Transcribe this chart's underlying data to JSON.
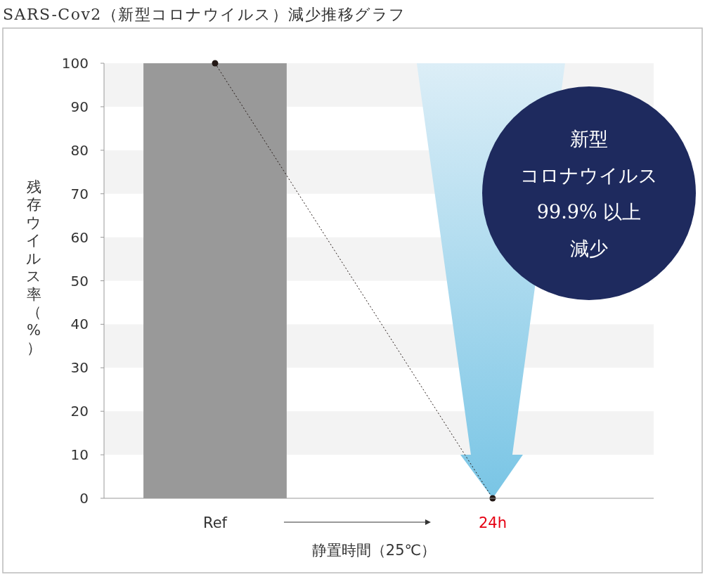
{
  "chart_data": {
    "type": "bar",
    "title": "SARS-Cov2（新型コロナウイルス）減少推移グラフ",
    "xlabel": "静置時間（25℃）",
    "ylabel": "残存ウイルス率（%）",
    "categories": [
      "Ref",
      "24h"
    ],
    "series": [
      {
        "color": "#999999",
        "values": [
          100,
          0
        ]
      },
      {
        "type": "line",
        "color": "#231815",
        "values": [
          100,
          0
        ],
        "marker": "circle",
        "line_style": "dotted"
      }
    ],
    "ylim": [
      0,
      100
    ],
    "yticks": [
      0,
      10,
      20,
      30,
      40,
      50,
      60,
      70,
      80,
      90,
      100
    ],
    "bands": [
      {
        "axis": "y",
        "from": 10,
        "to": 20,
        "color": "#f3f3f3"
      },
      {
        "axis": "y",
        "from": 30,
        "to": 40,
        "color": "#f3f3f3"
      },
      {
        "axis": "y",
        "from": 50,
        "to": 60,
        "color": "#f3f3f3"
      },
      {
        "axis": "y",
        "from": 70,
        "to": 80,
        "color": "#f3f3f3"
      },
      {
        "axis": "y",
        "from": 90,
        "to": 100,
        "color": "#f3f3f3"
      }
    ],
    "annotations": [
      "新型",
      "コロナウイルス",
      "99.9% 以上",
      "減少"
    ],
    "grid": false
  }
}
